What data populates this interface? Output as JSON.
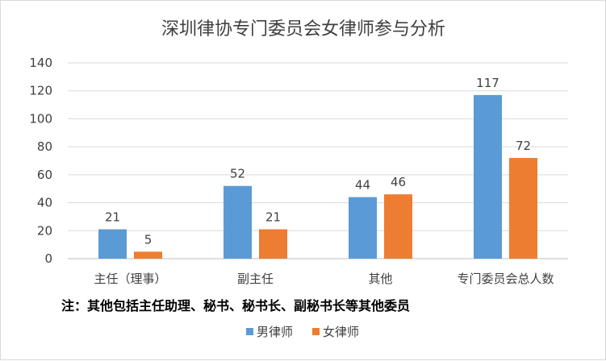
{
  "chart_data": {
    "type": "bar",
    "title": "深圳律协专门委员会女律师参与分析",
    "categories": [
      "主任（理事）",
      "副主任",
      "其他",
      "专门委员会总人数"
    ],
    "series": [
      {
        "name": "男律师",
        "values": [
          21,
          52,
          44,
          117
        ],
        "color": "#5B9BD5"
      },
      {
        "name": "女律师",
        "values": [
          5,
          21,
          46,
          72
        ],
        "color": "#ED7D31"
      }
    ],
    "ylim": [
      0,
      140
    ],
    "yticks": [
      0,
      20,
      40,
      60,
      80,
      100,
      120,
      140
    ],
    "grid": true,
    "legend": "bottom",
    "annotation": "注：其他包括主任助理、秘书、秘书长、副秘书长等其他委员"
  }
}
